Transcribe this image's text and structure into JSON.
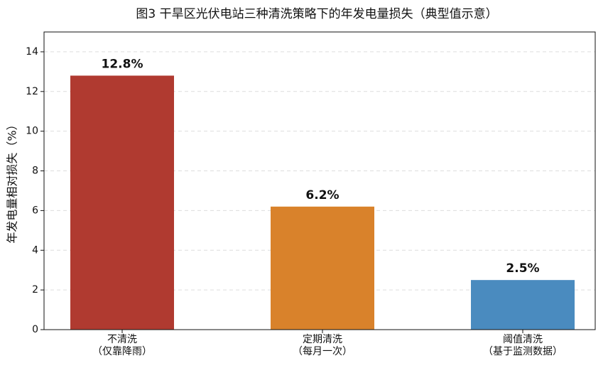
{
  "chart_data": {
    "type": "bar",
    "title": "图3  干旱区光伏电站三种清洗策略下的年发电量损失（典型值示意）",
    "y_label": "年发电量相对损失（%）",
    "categories": [
      "不清洗\n（仅靠降雨）",
      "定期清洗\n（每月一次）",
      "阈值清洗\n（基于监测数据）"
    ],
    "values": [
      12.8,
      6.2,
      2.5
    ],
    "value_labels": [
      "12.8%",
      "6.2%",
      "2.5%"
    ],
    "colors": [
      "#b03a30",
      "#d9822b",
      "#4a8bbf"
    ],
    "ylim": [
      0,
      15
    ],
    "yticks": [
      0,
      2,
      4,
      6,
      8,
      10,
      12,
      14
    ],
    "grid": true
  }
}
